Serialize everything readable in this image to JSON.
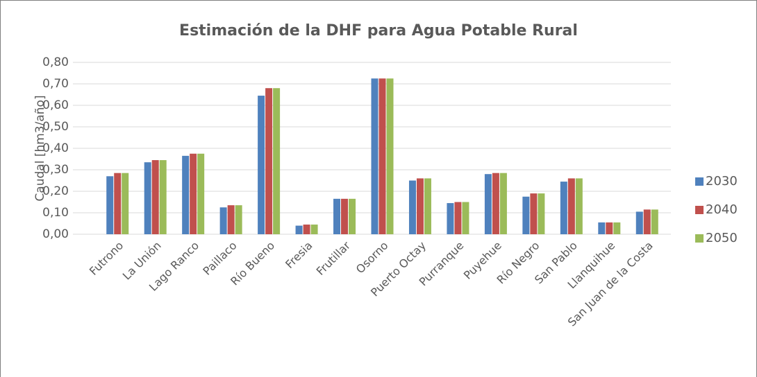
{
  "chart_data": {
    "type": "bar",
    "title": "Estimación de la DHF para Agua Potable Rural",
    "y_label": "Caudal [hm3/año]",
    "categories": [
      "Futrono",
      "La Unión",
      "Lago Ranco",
      "Paillaco",
      "Río Bueno",
      "Fresia",
      "Frutillar",
      "Osorno",
      "Puerto Octay",
      "Purranque",
      "Puyehue",
      "Río Negro",
      "San Pablo",
      "Llanquihue",
      "San Juan de la Costa"
    ],
    "series": [
      {
        "name": "2030",
        "color": "#4f81bd",
        "values": [
          0.27,
          0.335,
          0.365,
          0.125,
          0.645,
          0.04,
          0.165,
          0.725,
          0.25,
          0.145,
          0.28,
          0.175,
          0.245,
          0.055,
          0.105
        ]
      },
      {
        "name": "2040",
        "color": "#c0504d",
        "values": [
          0.285,
          0.345,
          0.375,
          0.135,
          0.68,
          0.045,
          0.165,
          0.725,
          0.26,
          0.15,
          0.285,
          0.19,
          0.26,
          0.055,
          0.115
        ]
      },
      {
        "name": "2050",
        "color": "#9bbb59",
        "values": [
          0.285,
          0.345,
          0.375,
          0.135,
          0.68,
          0.045,
          0.165,
          0.725,
          0.26,
          0.15,
          0.285,
          0.19,
          0.26,
          0.055,
          0.115
        ]
      }
    ],
    "ylim": [
      0,
      0.8
    ],
    "yticks": [
      {
        "value": 0,
        "label": "0,00"
      },
      {
        "value": 0.1,
        "label": "0,10"
      },
      {
        "value": 0.2,
        "label": "0,20"
      },
      {
        "value": 0.3,
        "label": "0,30"
      },
      {
        "value": 0.4,
        "label": "0,40"
      },
      {
        "value": 0.5,
        "label": "0,50"
      },
      {
        "value": 0.6,
        "label": "0,60"
      },
      {
        "value": 0.7,
        "label": "0,70"
      },
      {
        "value": 0.8,
        "label": "0,80"
      }
    ],
    "grid": true,
    "legend": "right"
  }
}
